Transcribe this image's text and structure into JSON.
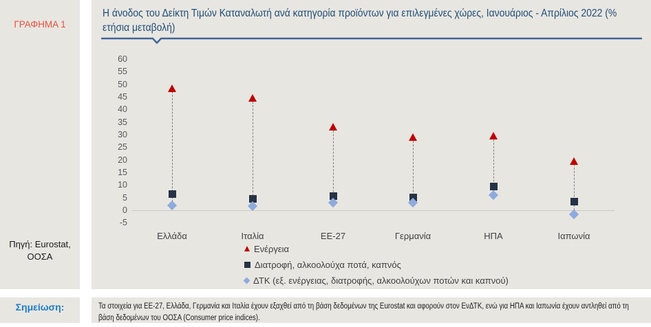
{
  "sidebar": {
    "figure_label": "ΓΡΑΦΗΜΑ 1",
    "source": "Πηγή: Eurostat, ΟΟΣΑ",
    "source_line1": "Πηγή: Eurostat,",
    "source_line2": "ΟΟΣΑ",
    "note_label": "Σημείωση:"
  },
  "note_text": "Τα στοιχεία για ΕΕ-27, Ελλάδα, Γερμανία και Ιταλία έχουν εξαχθεί από τη βάση δεδομένων της Eurostat και αφορούν στον ΕνΔΤΚ, ενώ για ΗΠΑ και Ιαπωνία έχουν αντληθεί από τη βάση δεδομένων του ΟΟΣΑ (Consumer price indices).",
  "chart_data": {
    "type": "scatter",
    "title": "Η άνοδος του Δείκτη Τιμών Καταναλωτή ανά κατηγορία προϊόντων για επιλεγμένες χώρες, Ιανουάριος - Απρίλιος 2022 (% ετήσια μεταβολή)",
    "categories": [
      "Ελλάδα",
      "Ιταλία",
      "ΕΕ-27",
      "Γερμανία",
      "ΗΠΑ",
      "Ιαπωνία"
    ],
    "series": [
      {
        "name": "Ενέργεια",
        "marker": "triangle",
        "color": "#c00000",
        "values": [
          48.5,
          44.5,
          33,
          29,
          29.5,
          19.5
        ]
      },
      {
        "name": "Διατροφή, αλκοολούχα ποτά, καπνός",
        "marker": "square",
        "color": "#263345",
        "values": [
          6.5,
          4.5,
          5.5,
          5,
          9.5,
          3.5
        ]
      },
      {
        "name": "ΔΤΚ (εξ. ενέργειας, διατροφής, αλκοολούχων ποτών και καπνού)",
        "marker": "diamond",
        "color": "#8faadc",
        "values": [
          2,
          1.5,
          3,
          3,
          6,
          -1.5
        ]
      }
    ],
    "yticks": [
      60,
      55,
      50,
      45,
      40,
      35,
      30,
      25,
      20,
      15,
      10,
      5,
      0,
      -5
    ],
    "ylim": [
      -5,
      60
    ],
    "xlabel": "",
    "ylabel": "",
    "grid": "zero-line-only",
    "legend_position": "bottom-left-of-center",
    "connector_style": "vertical-dashed-range-line"
  },
  "colors": {
    "panel_background": "#e8e6e1",
    "title_blue": "#1f4e79",
    "header_line_blue": "#3f6496",
    "figure_label_red": "#e8503c",
    "note_label_blue": "#1b7ec6",
    "energy_red": "#c00000",
    "food_navy": "#263345",
    "cpi_light_blue": "#8faadc"
  }
}
